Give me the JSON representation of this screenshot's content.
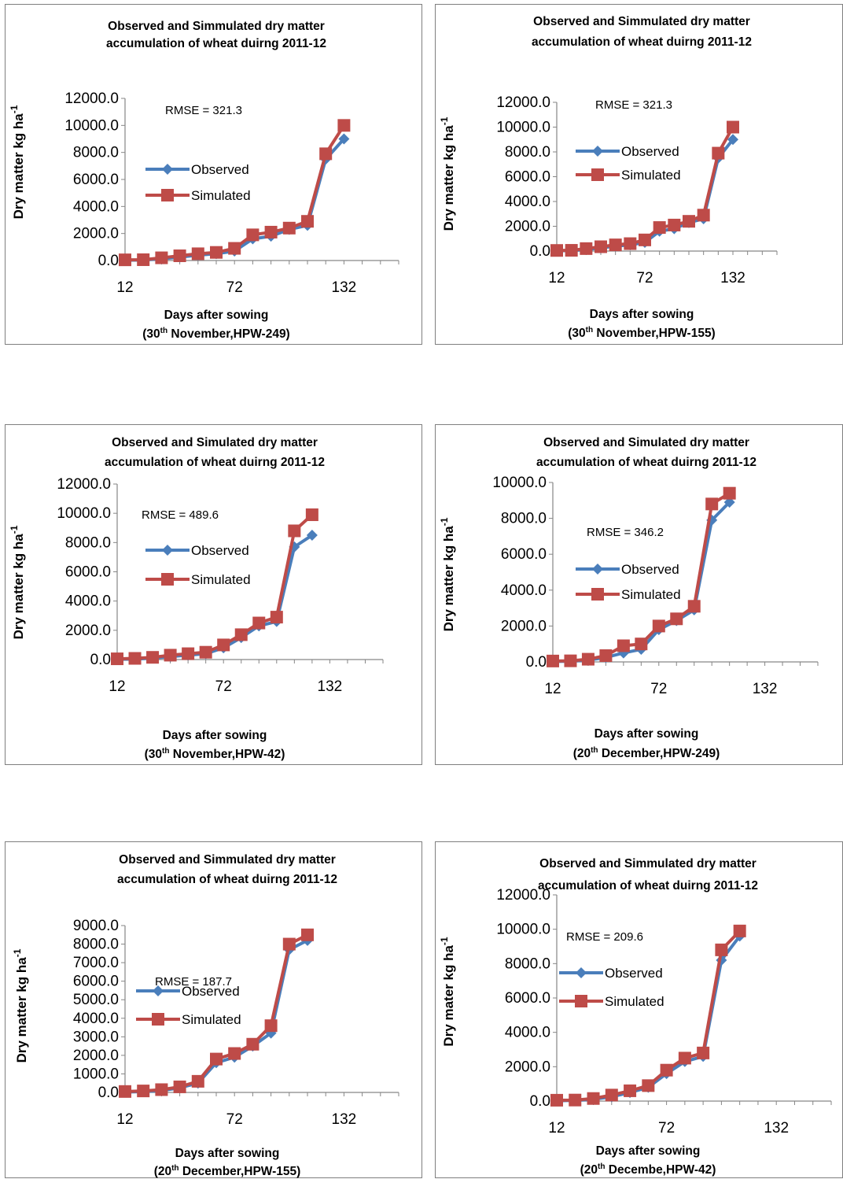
{
  "chart_data": [
    {
      "type": "line",
      "title": [
        "Observed and Simmulated dry matter",
        "accumulation of wheat duirng  2011-12"
      ],
      "xlabel": [
        "Days after sowing",
        "(30",
        "th",
        " November,HPW-249)"
      ],
      "ylabel": [
        "Dry matter kg ha",
        "-1"
      ],
      "xticks": [
        12,
        72,
        132
      ],
      "yticks": [
        "0.0",
        "2000.0",
        "4000.0",
        "6000.0",
        "8000.0",
        "10000.0",
        "12000.0"
      ],
      "xlim": [
        12,
        162
      ],
      "ylim": [
        0,
        12000
      ],
      "annotation": "RMSE = 321.3",
      "x": [
        12,
        22,
        32,
        42,
        52,
        62,
        72,
        82,
        92,
        102,
        112,
        122,
        132,
        142
      ],
      "series": [
        {
          "name": "Observed",
          "color": "#4a7ebb",
          "marker": "diamond",
          "values": [
            20,
            40,
            120,
            250,
            400,
            500,
            700,
            1600,
            1800,
            2300,
            2600,
            7500,
            9000,
            null
          ]
        },
        {
          "name": "Simulated",
          "color": "#be4b48",
          "marker": "square",
          "values": [
            50,
            60,
            200,
            350,
            500,
            600,
            900,
            1900,
            2100,
            2400,
            2900,
            7900,
            10000,
            null
          ]
        }
      ]
    },
    {
      "type": "line",
      "title": [
        "Observed and Simmulated dry matter",
        "accumulation of wheat duirng  2011-12"
      ],
      "xlabel": [
        "Days after sowing",
        "(30",
        "th",
        " November,HPW-155)"
      ],
      "ylabel": [
        "Dry matter kg ha",
        "-1"
      ],
      "xticks": [
        12,
        72,
        132
      ],
      "yticks": [
        "0.0",
        "2000.0",
        "4000.0",
        "6000.0",
        "8000.0",
        "10000.0",
        "12000.0"
      ],
      "xlim": [
        12,
        162
      ],
      "ylim": [
        0,
        12000
      ],
      "annotation": "RMSE = 321.3",
      "x": [
        12,
        22,
        32,
        42,
        52,
        62,
        72,
        82,
        92,
        102,
        112,
        122,
        132,
        142
      ],
      "series": [
        {
          "name": "Observed",
          "color": "#4a7ebb",
          "marker": "diamond",
          "values": [
            20,
            40,
            120,
            250,
            400,
            500,
            700,
            1600,
            1800,
            2300,
            2600,
            7500,
            9000,
            null
          ]
        },
        {
          "name": "Simulated",
          "color": "#be4b48",
          "marker": "square",
          "values": [
            50,
            60,
            200,
            350,
            500,
            600,
            900,
            1900,
            2100,
            2400,
            2900,
            7900,
            10000,
            null
          ]
        }
      ]
    },
    {
      "type": "line",
      "title": [
        "Observed and Simulated dry matter",
        "accumulation of wheat duirng  2011-12"
      ],
      "xlabel": [
        "Days after sowing",
        "(30",
        "th",
        " November,HPW-42)"
      ],
      "ylabel": [
        "Dry matter kg ha",
        "-1"
      ],
      "xticks": [
        12,
        72,
        132
      ],
      "yticks": [
        "0.0",
        "2000.0",
        "4000.0",
        "6000.0",
        "8000.0",
        "10000.0",
        "12000.0"
      ],
      "xlim": [
        12,
        162
      ],
      "ylim": [
        0,
        12000
      ],
      "annotation": "RMSE = 489.6",
      "x": [
        12,
        22,
        32,
        42,
        52,
        62,
        72,
        82,
        92,
        102,
        112,
        122,
        132,
        142
      ],
      "series": [
        {
          "name": "Observed",
          "color": "#4a7ebb",
          "marker": "diamond",
          "values": [
            20,
            30,
            100,
            200,
            300,
            400,
            800,
            1500,
            2300,
            2600,
            7700,
            8500,
            null,
            null
          ]
        },
        {
          "name": "Simulated",
          "color": "#be4b48",
          "marker": "square",
          "values": [
            50,
            80,
            150,
            300,
            400,
            500,
            1000,
            1700,
            2500,
            2900,
            8800,
            9900,
            null,
            null
          ]
        }
      ]
    },
    {
      "type": "line",
      "title": [
        "Observed and Simulated dry matter",
        "accumulation of wheat duirng  2011-12"
      ],
      "xlabel": [
        "Days after sowing",
        "(20",
        "th",
        " December,HPW-249)"
      ],
      "ylabel": [
        "Dry matter kg ha",
        "-1"
      ],
      "xticks": [
        12,
        72,
        132
      ],
      "yticks": [
        "0.0",
        "2000.0",
        "4000.0",
        "6000.0",
        "8000.0",
        "10000.0"
      ],
      "xlim": [
        12,
        162
      ],
      "ylim": [
        0,
        10000
      ],
      "annotation": "RMSE = 346.2",
      "x": [
        12,
        22,
        32,
        42,
        52,
        62,
        72,
        82,
        92,
        102,
        112,
        122,
        132,
        142
      ],
      "series": [
        {
          "name": "Observed",
          "color": "#4a7ebb",
          "marker": "diamond",
          "values": [
            20,
            40,
            100,
            250,
            500,
            700,
            1800,
            2300,
            2900,
            7900,
            8900,
            null,
            null,
            null
          ]
        },
        {
          "name": "Simulated",
          "color": "#be4b48",
          "marker": "square",
          "values": [
            50,
            60,
            150,
            350,
            900,
            1000,
            2000,
            2400,
            3100,
            8800,
            9400,
            null,
            null,
            null
          ]
        }
      ]
    },
    {
      "type": "line",
      "title": [
        "Observed and Simmulated dry matter",
        "accumulation of wheat duirng  2011-12"
      ],
      "xlabel": [
        "Days after sowing",
        "(20",
        "th",
        " December,HPW-155)"
      ],
      "ylabel": [
        "Dry matter kg ha",
        "-1"
      ],
      "xticks": [
        12,
        72,
        132
      ],
      "yticks": [
        "0.0",
        "1000.0",
        "2000.0",
        "3000.0",
        "4000.0",
        "5000.0",
        "6000.0",
        "7000.0",
        "8000.0",
        "9000.0"
      ],
      "xlim": [
        12,
        162
      ],
      "ylim": [
        0,
        9000
      ],
      "annotation": "RMSE = 187.7",
      "x": [
        12,
        22,
        32,
        42,
        52,
        62,
        72,
        82,
        92,
        102,
        112,
        122,
        132,
        142
      ],
      "series": [
        {
          "name": "Observed",
          "color": "#4a7ebb",
          "marker": "diamond",
          "values": [
            20,
            40,
            100,
            250,
            500,
            1600,
            1900,
            2500,
            3200,
            7700,
            8200,
            null,
            null,
            null
          ]
        },
        {
          "name": "Simulated",
          "color": "#be4b48",
          "marker": "square",
          "values": [
            50,
            80,
            150,
            300,
            600,
            1800,
            2100,
            2600,
            3600,
            8000,
            8500,
            null,
            null,
            null
          ]
        }
      ]
    },
    {
      "type": "line",
      "title": [
        "Observed and Simmulated dry matter",
        "accumulation of wheat duirng  2011-12"
      ],
      "xlabel": [
        "Days after sowing",
        "(20",
        "th",
        " Decembe,HPW-42)"
      ],
      "ylabel": [
        "Dry mater kg ha",
        "-1"
      ],
      "xticks": [
        12,
        72,
        132
      ],
      "yticks": [
        "0.0",
        "2000.0",
        "4000.0",
        "6000.0",
        "8000.0",
        "10000.0",
        "12000.0"
      ],
      "xlim": [
        12,
        162
      ],
      "ylim": [
        0,
        12000
      ],
      "annotation": "RMSE = 209.6",
      "x": [
        12,
        22,
        32,
        42,
        52,
        62,
        72,
        82,
        92,
        102,
        112,
        122,
        132,
        142
      ],
      "series": [
        {
          "name": "Observed",
          "color": "#4a7ebb",
          "marker": "diamond",
          "values": [
            20,
            40,
            100,
            250,
            500,
            800,
            1600,
            2300,
            2600,
            8200,
            9600,
            null,
            null,
            null
          ]
        },
        {
          "name": "Simulated",
          "color": "#be4b48",
          "marker": "square",
          "values": [
            50,
            60,
            150,
            350,
            600,
            900,
            1800,
            2500,
            2800,
            8800,
            9900,
            null,
            null,
            null
          ]
        }
      ]
    }
  ]
}
